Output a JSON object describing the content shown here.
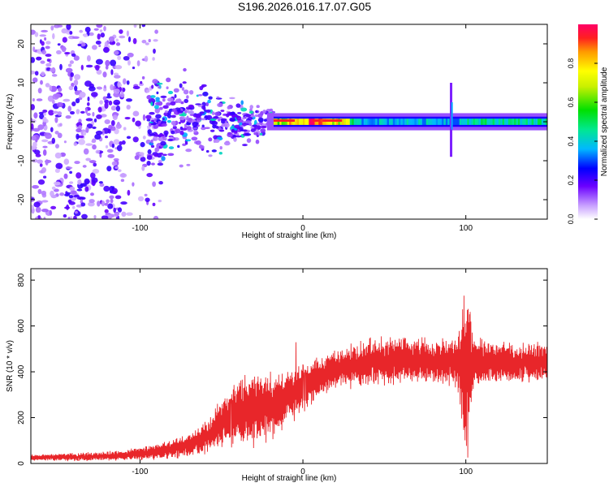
{
  "title": "S196.2026.016.17.07.G05",
  "chart_data": [
    {
      "type": "heatmap",
      "title": "",
      "xlabel": "Height of straight line (km)",
      "ylabel": "Frequency (Hz)",
      "xlim": [
        -167,
        150
      ],
      "ylim": [
        -25,
        25
      ],
      "xticks": [
        -100,
        0,
        100
      ],
      "xtick_labels": [
        "-100",
        "0",
        "100"
      ],
      "yticks": [
        -20,
        -10,
        0,
        10,
        20
      ],
      "ytick_labels": [
        "-20",
        "-10",
        "0",
        "10",
        "20"
      ],
      "colorbar": {
        "label": "Normalized spectral amplitude",
        "range": [
          0,
          1
        ],
        "ticks": [
          0,
          0.2,
          0.4,
          0.6,
          0.8
        ],
        "tick_labels": [
          "0.0",
          "0.2",
          "0.4",
          "0.6",
          "0.8"
        ]
      },
      "features": [
        {
          "description": "diffuse scattered noise",
          "x_range": [
            -167,
            -95
          ],
          "y_range": [
            -25,
            25
          ],
          "amplitude": 0.1
        },
        {
          "description": "converging cluster",
          "x_range": [
            -95,
            -20
          ],
          "y_range": [
            -10,
            10
          ],
          "amplitude": 0.25
        },
        {
          "description": "narrow band near 0 Hz",
          "x_range": [
            -20,
            150
          ],
          "y_center": 0,
          "amplitude": 0.55
        },
        {
          "description": "strong narrow band",
          "x_range": [
            -18,
            25
          ],
          "y_center": 0.3,
          "amplitude": 0.95
        },
        {
          "description": "vertical spike",
          "x": 91,
          "y_range": [
            -9,
            11
          ],
          "amplitude": 0.35
        }
      ]
    },
    {
      "type": "line",
      "title": "",
      "xlabel": "Height of straight line (km)",
      "ylabel": "SNR (10 * v/v)",
      "xlim": [
        -167,
        150
      ],
      "ylim": [
        0,
        850
      ],
      "xticks": [
        -100,
        0,
        100
      ],
      "xtick_labels": [
        "-100",
        "0",
        "100"
      ],
      "yticks": [
        0,
        200,
        400,
        600,
        800
      ],
      "ytick_labels": [
        "0",
        "200",
        "400",
        "600",
        "800"
      ],
      "series_color": "#e8262a",
      "series": [
        {
          "name": "SNR envelope",
          "x": [
            -167,
            -140,
            -110,
            -90,
            -70,
            -60,
            -50,
            -40,
            -30,
            -20,
            -10,
            0,
            10,
            20,
            40,
            60,
            80,
            95,
            100,
            105,
            120,
            150
          ],
          "center": [
            25,
            28,
            35,
            50,
            80,
            110,
            180,
            220,
            230,
            250,
            290,
            330,
            380,
            410,
            440,
            455,
            445,
            440,
            400,
            440,
            440,
            440
          ],
          "amplitude": [
            12,
            15,
            20,
            30,
            45,
            60,
            90,
            140,
            150,
            130,
            110,
            100,
            75,
            75,
            90,
            95,
            85,
            90,
            420,
            95,
            80,
            75
          ]
        }
      ]
    }
  ]
}
